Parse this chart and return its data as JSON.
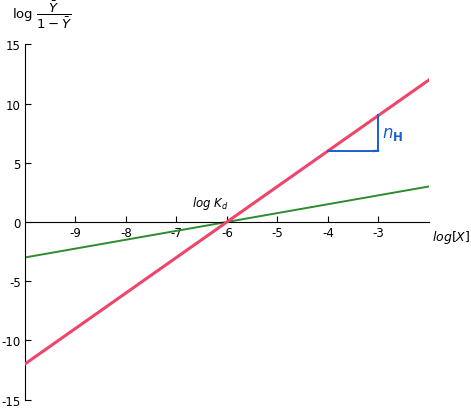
{
  "xmin": -10,
  "xmax": -2,
  "ymin": -15,
  "ymax": 15,
  "log_Kd": -6,
  "nH": 3,
  "slope_green": 0.75,
  "red_line_color": "#F0456A",
  "green_line_color": "#2E8B2E",
  "blue_color": "#1A5FCC",
  "lw_red": 2.2,
  "lw_green": 1.4,
  "lw_blue": 1.4,
  "xticks": [
    -9,
    -8,
    -7,
    -6,
    -5,
    -4,
    -3
  ],
  "yticks": [
    -15,
    -10,
    -5,
    0,
    5,
    10,
    15
  ],
  "triangle_x1": -4.0,
  "triangle_y1": 6.0,
  "triangle_x2": -3.0,
  "triangle_y2": 6.0,
  "triangle_y3": 9.0,
  "background": "#FFFFFF"
}
